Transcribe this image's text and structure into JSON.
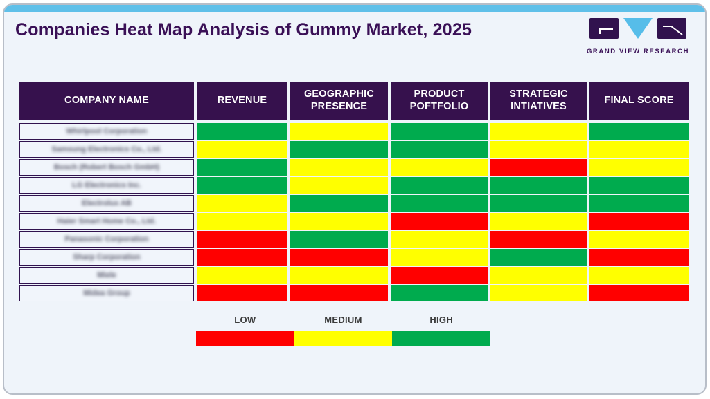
{
  "header": {
    "title": "Companies Heat Map Analysis of Gummy Market, 2025",
    "logo_text": "GRAND VIEW RESEARCH"
  },
  "colors": {
    "low": "#ff0000",
    "medium": "#ffff00",
    "high": "#00ab4e",
    "header_bg": "#36114d",
    "accent_blue": "#5fc0e9",
    "title_purple": "#3a1056"
  },
  "chart_data": {
    "type": "heatmap",
    "title": "Companies Heat Map Analysis of Gummy Market, 2025",
    "columns": [
      "COMPANY NAME",
      "REVENUE",
      "GEOGRAPHIC PRESENCE",
      "PRODUCT POFTFOLIO",
      "STRATEGIC INTIATIVES",
      "FINAL SCORE"
    ],
    "companies": [
      "Whirlpool Corporation",
      "Samsung Electronics Co., Ltd.",
      "Bosch (Robert Bosch GmbH)",
      "LG Electronics Inc.",
      "Electrolux AB",
      "Haier Smart Home Co., Ltd.",
      "Panasonic Corporation",
      "Sharp Corporation",
      "Miele",
      "Midea Group"
    ],
    "values": [
      [
        "high",
        "medium",
        "high",
        "medium",
        "high"
      ],
      [
        "medium",
        "high",
        "high",
        "medium",
        "medium"
      ],
      [
        "high",
        "medium",
        "medium",
        "low",
        "medium"
      ],
      [
        "high",
        "medium",
        "high",
        "high",
        "high"
      ],
      [
        "medium",
        "high",
        "high",
        "high",
        "high"
      ],
      [
        "medium",
        "medium",
        "low",
        "medium",
        "low"
      ],
      [
        "low",
        "high",
        "medium",
        "low",
        "medium"
      ],
      [
        "low",
        "low",
        "medium",
        "high",
        "low"
      ],
      [
        "medium",
        "medium",
        "low",
        "medium",
        "medium"
      ],
      [
        "low",
        "low",
        "high",
        "medium",
        "low"
      ]
    ],
    "scale": {
      "low": "#ff0000",
      "medium": "#ffff00",
      "high": "#00ab4e"
    },
    "legend_position": "bottom"
  },
  "legend": {
    "items": [
      {
        "label": "LOW",
        "level": "low"
      },
      {
        "label": "MEDIUM",
        "level": "medium"
      },
      {
        "label": "HIGH",
        "level": "high"
      }
    ]
  }
}
